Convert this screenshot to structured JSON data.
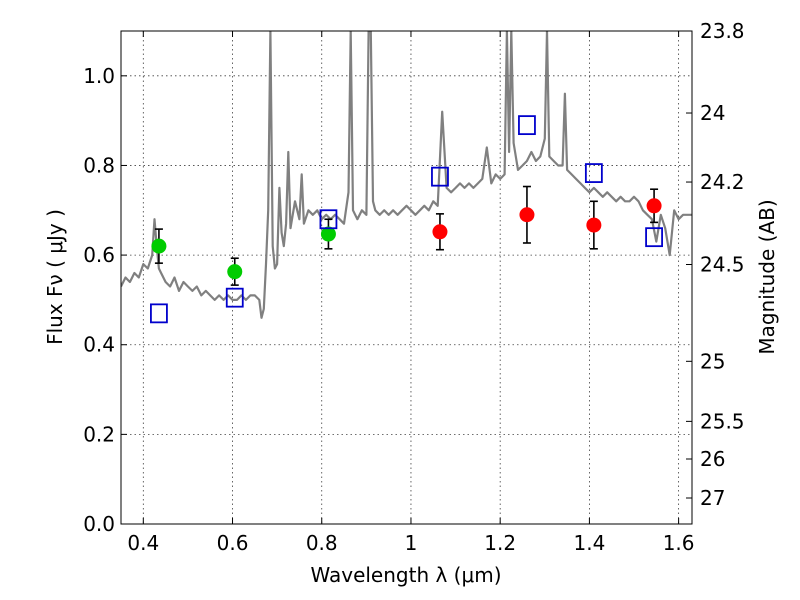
{
  "chart_data": {
    "type": "scatter",
    "x_axis": {
      "label": "Wavelength  λ (μm)",
      "range": [
        0.35,
        1.63
      ],
      "ticks": [
        0.4,
        0.6,
        0.8,
        1.0,
        1.2,
        1.4,
        1.6
      ],
      "tick_labels": [
        "0.4",
        "0.6",
        "0.8",
        "1",
        "1.2",
        "1.4",
        "1.6"
      ]
    },
    "y_axis": {
      "label": "Flux  Fν ( μJy )",
      "range": [
        0.0,
        1.1
      ],
      "ticks": [
        0.0,
        0.2,
        0.4,
        0.6,
        0.8,
        1.0
      ],
      "tick_labels": [
        "0.0",
        "0.2",
        "0.4",
        "0.6",
        "0.8",
        "1.0"
      ]
    },
    "y2_axis": {
      "label": "Magnitude (AB)",
      "ticks": [
        {
          "label": "23.8",
          "flux": 1.1
        },
        {
          "label": "24",
          "flux": 0.917
        },
        {
          "label": "24.2",
          "flux": 0.763
        },
        {
          "label": "24.5",
          "flux": 0.579
        },
        {
          "label": "25",
          "flux": 0.363
        },
        {
          "label": "25.5",
          "flux": 0.229
        },
        {
          "label": "26",
          "flux": 0.145
        },
        {
          "label": "27",
          "flux": 0.058
        }
      ]
    },
    "grid": true,
    "series": [
      {
        "kind": "spectrum-line",
        "color": "#808080",
        "x": [
          0.35,
          0.36,
          0.37,
          0.38,
          0.39,
          0.4,
          0.41,
          0.42,
          0.425,
          0.43,
          0.435,
          0.44,
          0.45,
          0.46,
          0.47,
          0.48,
          0.49,
          0.5,
          0.51,
          0.52,
          0.53,
          0.54,
          0.55,
          0.56,
          0.57,
          0.58,
          0.59,
          0.6,
          0.61,
          0.62,
          0.63,
          0.64,
          0.65,
          0.66,
          0.665,
          0.67,
          0.675,
          0.68,
          0.685,
          0.69,
          0.695,
          0.7,
          0.705,
          0.71,
          0.715,
          0.72,
          0.725,
          0.73,
          0.74,
          0.75,
          0.755,
          0.76,
          0.77,
          0.78,
          0.79,
          0.8,
          0.81,
          0.82,
          0.83,
          0.84,
          0.85,
          0.86,
          0.865,
          0.87,
          0.88,
          0.89,
          0.9,
          0.905,
          0.91,
          0.915,
          0.92,
          0.93,
          0.94,
          0.95,
          0.96,
          0.97,
          0.98,
          0.99,
          1.0,
          1.01,
          1.02,
          1.03,
          1.04,
          1.05,
          1.06,
          1.07,
          1.08,
          1.09,
          1.1,
          1.11,
          1.12,
          1.13,
          1.14,
          1.15,
          1.16,
          1.17,
          1.18,
          1.19,
          1.2,
          1.21,
          1.215,
          1.22,
          1.225,
          1.23,
          1.24,
          1.25,
          1.26,
          1.27,
          1.28,
          1.29,
          1.3,
          1.305,
          1.31,
          1.32,
          1.33,
          1.34,
          1.345,
          1.35,
          1.36,
          1.37,
          1.38,
          1.39,
          1.4,
          1.41,
          1.42,
          1.43,
          1.44,
          1.45,
          1.46,
          1.47,
          1.48,
          1.49,
          1.5,
          1.51,
          1.52,
          1.53,
          1.54,
          1.55,
          1.56,
          1.57,
          1.58,
          1.59,
          1.6,
          1.61,
          1.62,
          1.63
        ],
        "y": [
          0.53,
          0.55,
          0.54,
          0.56,
          0.55,
          0.58,
          0.57,
          0.6,
          0.68,
          0.62,
          0.57,
          0.56,
          0.54,
          0.53,
          0.55,
          0.52,
          0.54,
          0.53,
          0.52,
          0.53,
          0.51,
          0.52,
          0.51,
          0.5,
          0.51,
          0.5,
          0.51,
          0.5,
          0.5,
          0.51,
          0.5,
          0.51,
          0.51,
          0.5,
          0.46,
          0.48,
          0.58,
          0.7,
          1.1,
          0.62,
          0.57,
          0.58,
          0.75,
          0.65,
          0.62,
          0.67,
          0.83,
          0.66,
          0.72,
          0.68,
          0.78,
          0.67,
          0.7,
          0.69,
          0.7,
          0.68,
          0.69,
          0.68,
          0.69,
          0.68,
          0.67,
          0.74,
          1.1,
          0.7,
          0.68,
          0.7,
          0.69,
          1.1,
          1.1,
          0.72,
          0.7,
          0.69,
          0.7,
          0.69,
          0.7,
          0.69,
          0.7,
          0.71,
          0.7,
          0.69,
          0.7,
          0.71,
          0.7,
          0.72,
          0.71,
          0.92,
          0.75,
          0.74,
          0.75,
          0.76,
          0.75,
          0.76,
          0.75,
          0.76,
          0.77,
          0.84,
          0.76,
          0.78,
          0.77,
          0.78,
          1.1,
          0.83,
          1.1,
          0.85,
          0.79,
          0.8,
          0.81,
          0.83,
          0.81,
          0.82,
          0.86,
          1.1,
          0.82,
          0.81,
          0.8,
          0.8,
          0.96,
          0.79,
          0.78,
          0.77,
          0.76,
          0.75,
          0.74,
          0.75,
          0.74,
          0.73,
          0.74,
          0.73,
          0.72,
          0.73,
          0.72,
          0.72,
          0.73,
          0.72,
          0.7,
          0.69,
          0.68,
          0.63,
          0.69,
          0.66,
          0.6,
          0.7,
          0.68,
          0.69,
          0.69,
          0.69
        ]
      },
      {
        "kind": "points-errorbars",
        "color": "#00cc00",
        "x": [
          0.435,
          0.605,
          0.815
        ],
        "y": [
          0.62,
          0.563,
          0.647
        ],
        "yerr": [
          0.038,
          0.03,
          0.033
        ]
      },
      {
        "kind": "points-errorbars",
        "color": "#ff0000",
        "x": [
          1.065,
          1.26,
          1.41,
          1.545
        ],
        "y": [
          0.652,
          0.69,
          0.667,
          0.71
        ],
        "yerr": [
          0.04,
          0.063,
          0.053,
          0.037
        ]
      },
      {
        "kind": "open-squares",
        "color": "#0000cc",
        "x": [
          0.435,
          0.605,
          0.815,
          1.065,
          1.26,
          1.41,
          1.545
        ],
        "y": [
          0.47,
          0.505,
          0.68,
          0.775,
          0.89,
          0.783,
          0.64
        ]
      }
    ]
  }
}
